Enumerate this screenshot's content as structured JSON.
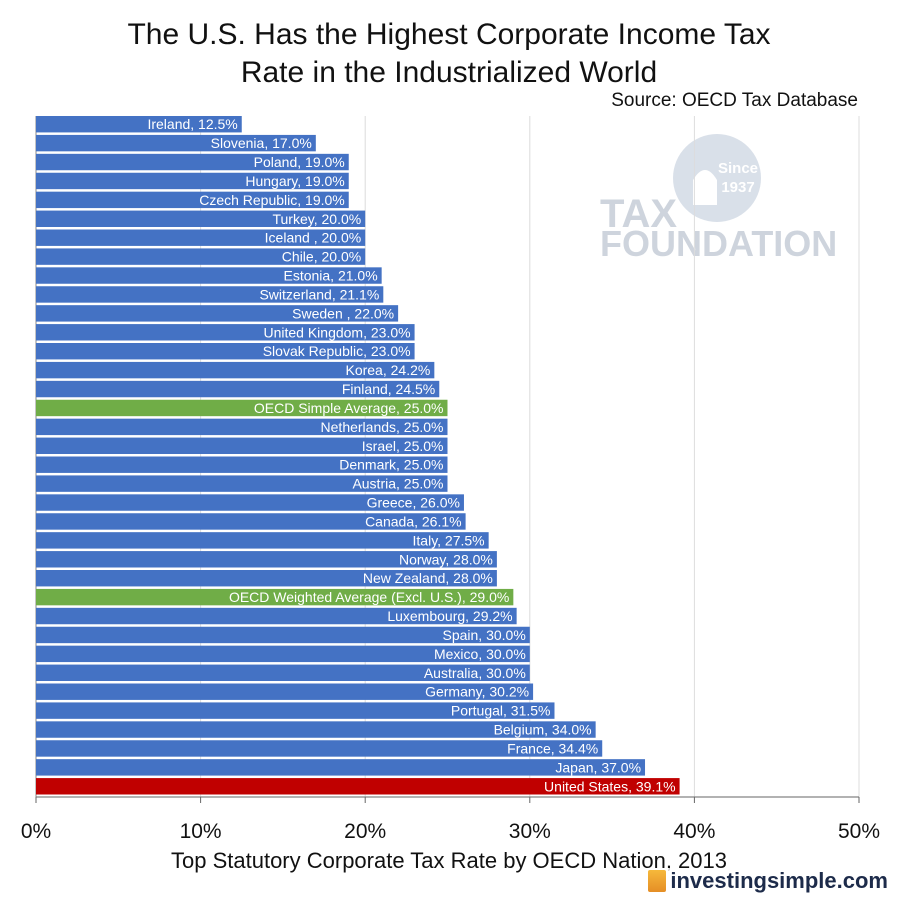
{
  "title_line1": "The U.S. Has the Highest Corporate Income Tax",
  "title_line2": "Rate in the Industrialized World",
  "source": "Source: OECD Tax Database",
  "watermark": {
    "since": "Since",
    "year": "1937",
    "line1": "TAX",
    "line2": "FOUNDATION"
  },
  "logo_text": "investingsimple.com",
  "colors": {
    "default": "#4472C4",
    "average": "#70AD47",
    "highlight": "#C00000"
  },
  "chart_data": {
    "type": "bar",
    "orientation": "horizontal",
    "title": "The U.S. Has the Highest Corporate Income Tax Rate in the Industrialized World",
    "xlabel": "Top Statutory Corporate Tax Rate by OECD Nation, 2013",
    "ylabel": "",
    "xlim": [
      0,
      50
    ],
    "xticks": [
      "0%",
      "10%",
      "20%",
      "30%",
      "40%",
      "50%"
    ],
    "grid": true,
    "bars": [
      {
        "label": "Ireland, 12.5%",
        "value": 12.5,
        "kind": "default"
      },
      {
        "label": "Slovenia, 17.0%",
        "value": 17.0,
        "kind": "default"
      },
      {
        "label": "Poland, 19.0%",
        "value": 19.0,
        "kind": "default"
      },
      {
        "label": "Hungary, 19.0%",
        "value": 19.0,
        "kind": "default"
      },
      {
        "label": "Czech Republic, 19.0%",
        "value": 19.0,
        "kind": "default"
      },
      {
        "label": "Turkey, 20.0%",
        "value": 20.0,
        "kind": "default"
      },
      {
        "label": "Iceland , 20.0%",
        "value": 20.0,
        "kind": "default"
      },
      {
        "label": "Chile, 20.0%",
        "value": 20.0,
        "kind": "default"
      },
      {
        "label": "Estonia, 21.0%",
        "value": 21.0,
        "kind": "default"
      },
      {
        "label": "Switzerland, 21.1%",
        "value": 21.1,
        "kind": "default"
      },
      {
        "label": "Sweden    , 22.0%",
        "value": 22.0,
        "kind": "default"
      },
      {
        "label": "United Kingdom, 23.0%",
        "value": 23.0,
        "kind": "default"
      },
      {
        "label": "Slovak Republic, 23.0%",
        "value": 23.0,
        "kind": "default"
      },
      {
        "label": "Korea, 24.2%",
        "value": 24.2,
        "kind": "default"
      },
      {
        "label": "Finland, 24.5%",
        "value": 24.5,
        "kind": "default"
      },
      {
        "label": "OECD Simple Average, 25.0%",
        "value": 25.0,
        "kind": "average"
      },
      {
        "label": "Netherlands, 25.0%",
        "value": 25.0,
        "kind": "default"
      },
      {
        "label": "Israel, 25.0%",
        "value": 25.0,
        "kind": "default"
      },
      {
        "label": "Denmark, 25.0%",
        "value": 25.0,
        "kind": "default"
      },
      {
        "label": "Austria, 25.0%",
        "value": 25.0,
        "kind": "default"
      },
      {
        "label": "Greece, 26.0%",
        "value": 26.0,
        "kind": "default"
      },
      {
        "label": "Canada, 26.1%",
        "value": 26.1,
        "kind": "default"
      },
      {
        "label": "Italy, 27.5%",
        "value": 27.5,
        "kind": "default"
      },
      {
        "label": "Norway, 28.0%",
        "value": 28.0,
        "kind": "default"
      },
      {
        "label": "New Zealand, 28.0%",
        "value": 28.0,
        "kind": "default"
      },
      {
        "label": "OECD Weighted Average (Excl. U.S.), 29.0%",
        "value": 29.0,
        "kind": "average"
      },
      {
        "label": "Luxembourg, 29.2%",
        "value": 29.2,
        "kind": "default"
      },
      {
        "label": "Spain, 30.0%",
        "value": 30.0,
        "kind": "default"
      },
      {
        "label": "Mexico, 30.0%",
        "value": 30.0,
        "kind": "default"
      },
      {
        "label": "Australia, 30.0%",
        "value": 30.0,
        "kind": "default"
      },
      {
        "label": "Germany, 30.2%",
        "value": 30.2,
        "kind": "default"
      },
      {
        "label": "Portugal, 31.5%",
        "value": 31.5,
        "kind": "default"
      },
      {
        "label": "Belgium, 34.0%",
        "value": 34.0,
        "kind": "default"
      },
      {
        "label": "France, 34.4%",
        "value": 34.4,
        "kind": "default"
      },
      {
        "label": "Japan, 37.0%",
        "value": 37.0,
        "kind": "default"
      },
      {
        "label": "United States, 39.1%",
        "value": 39.1,
        "kind": "highlight"
      }
    ]
  }
}
